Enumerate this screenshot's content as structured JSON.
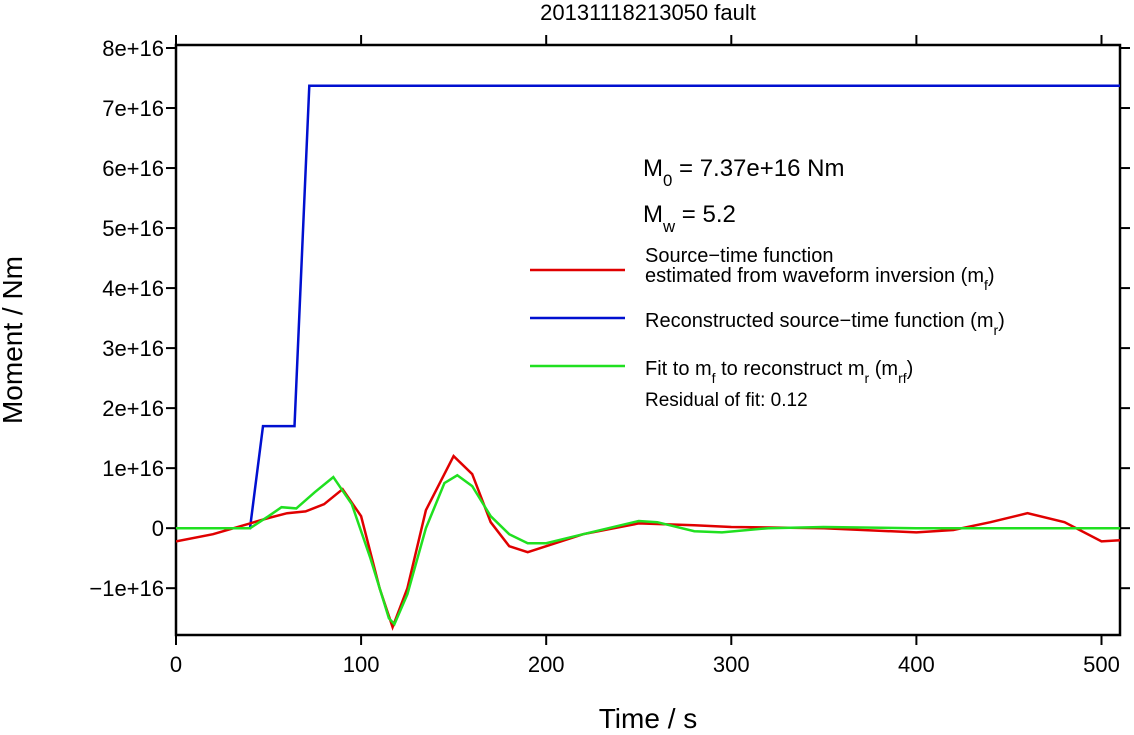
{
  "chart_data": {
    "type": "line",
    "title": "20131118213050 fault",
    "x_label": "Time / s",
    "y_label": "Moment / Nm",
    "xlim": [
      0,
      510
    ],
    "xticks": [
      0,
      100,
      200,
      300,
      400,
      500
    ],
    "ylim": [
      -1.78e+16,
      8.05e+16
    ],
    "yticks": [
      {
        "value": -1e+16,
        "label": "−1e+16"
      },
      0,
      {
        "value": 1e+16,
        "label": "1e+16"
      },
      {
        "value": 2e+16,
        "label": "2e+16"
      },
      {
        "value": 3e+16,
        "label": "3e+16"
      },
      {
        "value": 4e+16,
        "label": "4e+16"
      },
      {
        "value": 5e+16,
        "label": "5e+16"
      },
      {
        "value": 6e+16,
        "label": "6e+16"
      },
      {
        "value": 7e+16,
        "label": "7e+16"
      },
      {
        "value": 8e+16,
        "label": "8e+16"
      }
    ],
    "annotations": [
      [
        [
          "M",
          {
            "sub": "0"
          },
          " = 7.37e+16 Nm"
        ]
      ],
      [
        [
          "M",
          {
            "sub": "w"
          },
          " = 5.2"
        ]
      ]
    ],
    "note": "Residual of fit: 0.12",
    "series": [
      {
        "name": [
          [
            "Source−time function"
          ],
          [
            "estimated from waveform inversion (m",
            {
              "sub": "f"
            },
            ")"
          ]
        ],
        "color": "#e00000",
        "x": [
          0,
          20,
          40,
          50,
          60,
          70,
          80,
          90,
          100,
          110,
          117,
          125,
          135,
          150,
          160,
          170,
          180,
          190,
          200,
          220,
          250,
          280,
          300,
          350,
          400,
          420,
          440,
          460,
          480,
          500,
          510
        ],
        "values": [
          -2200000000000000.0,
          -1000000000000000.0,
          800000000000000.0,
          1700000000000000.0,
          2500000000000000.0,
          2800000000000000.0,
          4000000000000000.0,
          6500000000000000.0,
          2000000000000000.0,
          -1e+16,
          -1.65e+16,
          -1e+16,
          3000000000000000.0,
          1.2e+16,
          9000000000000000.0,
          1000000000000000.0,
          -3000000000000000.0,
          -4000000000000000.0,
          -3000000000000000.0,
          -1000000000000000.0,
          800000000000000.0,
          500000000000000.0,
          200000000000000.0,
          0.0,
          -700000000000000.0,
          -300000000000000.0,
          1000000000000000.0,
          2500000000000000.0,
          1000000000000000.0,
          -2200000000000000.0,
          -2000000000000000.0
        ]
      },
      {
        "name": [
          [
            "Reconstructed source−time function (m",
            {
              "sub": "r"
            },
            ")"
          ]
        ],
        "color": "#0010d0",
        "x": [
          0,
          40,
          47,
          64,
          72,
          510
        ],
        "values": [
          0,
          0,
          1.7e+16,
          1.7e+16,
          7.37e+16,
          7.37e+16
        ]
      },
      {
        "name": [
          [
            "Fit to m",
            {
              "sub": "f"
            },
            " to reconstruct m",
            {
              "sub": "r"
            },
            " (m",
            {
              "sub": "rf"
            },
            ")"
          ]
        ],
        "color": "#20e020",
        "x": [
          0,
          40,
          50,
          57,
          65,
          75,
          85,
          95,
          105,
          115,
          118,
          125,
          135,
          145,
          152,
          160,
          170,
          180,
          190,
          200,
          220,
          250,
          260,
          280,
          295,
          320,
          350,
          400,
          450,
          510
        ],
        "values": [
          0,
          0,
          2000000000000000.0,
          3500000000000000.0,
          3300000000000000.0,
          6000000000000000.0,
          8500000000000000.0,
          4000000000000000.0,
          -5000000000000000.0,
          -1.5e+16,
          -1.6e+16,
          -1.1e+16,
          0.0,
          7500000000000000.0,
          8800000000000000.0,
          7000000000000000.0,
          2000000000000000.0,
          -1000000000000000.0,
          -2500000000000000.0,
          -2500000000000000.0,
          -1000000000000000.0,
          1200000000000000.0,
          1000000000000000.0,
          -500000000000000.0,
          -700000000000000.0,
          0.0,
          200000000000000.0,
          0.0,
          0.0,
          0
        ]
      }
    ]
  }
}
